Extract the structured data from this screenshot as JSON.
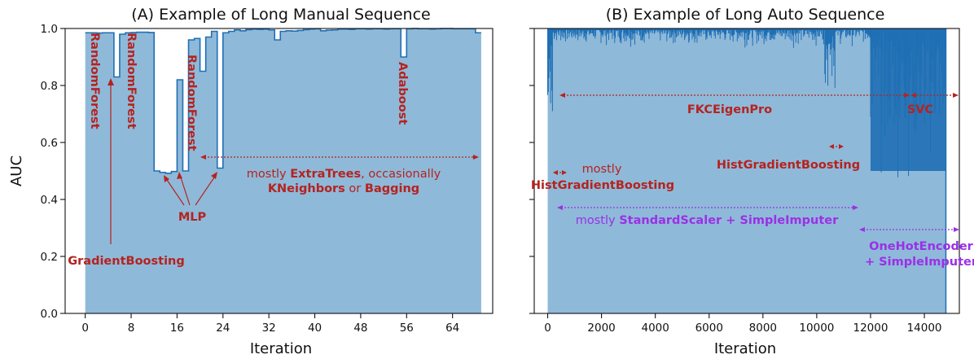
{
  "chart_data": [
    {
      "type": "area",
      "title": "(A) Example of Long Manual Sequence",
      "xlabel": "Iteration",
      "ylabel": "AUC",
      "xlim": [
        -3.5,
        71
      ],
      "ylim": [
        0,
        1
      ],
      "xticks": [
        "0",
        "8",
        "16",
        "24",
        "32",
        "40",
        "48",
        "56",
        "64"
      ],
      "yticks": [
        "0.0",
        "0.2",
        "0.4",
        "0.6",
        "0.8",
        "1.0"
      ],
      "color": "#1f6fb4",
      "fill_color": "#8fb9d9",
      "series": [
        {
          "x": [
            0,
            1,
            2,
            3,
            4,
            5,
            6,
            7,
            8,
            9,
            10,
            11,
            12,
            13,
            14,
            15,
            16,
            17,
            18,
            19,
            20,
            21,
            22,
            23,
            24,
            25,
            26,
            27,
            28,
            29,
            30,
            31,
            32,
            33,
            34,
            35,
            36,
            37,
            38,
            39,
            40,
            41,
            42,
            43,
            44,
            45,
            46,
            47,
            48,
            49,
            50,
            51,
            52,
            53,
            54,
            55,
            56,
            57,
            58,
            59,
            60,
            61,
            62,
            63,
            64,
            65,
            66,
            67,
            68
          ],
          "y": [
            0.985,
            0.985,
            0.984,
            0.985,
            0.985,
            0.83,
            0.98,
            0.985,
            0.986,
            0.987,
            0.987,
            0.986,
            0.5,
            0.495,
            0.492,
            0.498,
            0.82,
            0.5,
            0.96,
            0.965,
            0.85,
            0.97,
            0.99,
            0.51,
            0.985,
            0.99,
            0.995,
            0.992,
            0.996,
            0.998,
            0.997,
            0.998,
            0.995,
            0.96,
            0.99,
            0.992,
            0.991,
            0.993,
            0.996,
            0.998,
            0.999,
            0.992,
            0.994,
            0.995,
            0.998,
            0.998,
            0.997,
            0.999,
            0.999,
            0.998,
            0.999,
            0.999,
            0.998,
            0.999,
            0.999,
            0.9,
            0.999,
            1.0,
            0.999,
            0.999,
            0.998,
            0.999,
            1.0,
            1.0,
            0.999,
            0.999,
            0.999,
            0.999,
            0.985
          ]
        }
      ],
      "annotations": {
        "gradient_boosting": "GradientBoosting",
        "random_forest_1": "RandomForest",
        "random_forest_2": "RandomForest",
        "random_forest_3": "RandomForest",
        "adaboost": "Adaboost",
        "mlp": "MLP",
        "extratrees_line1_pre": "mostly ",
        "extratrees_line1_bold": "ExtraTrees",
        "extratrees_line1_post": ", occasionally",
        "extratrees_line2_bold1": "KNeighbors",
        "extratrees_line2_mid": " or ",
        "extratrees_line2_bold2": "Bagging"
      }
    },
    {
      "type": "area",
      "title": "(B) Example of Long Auto Sequence",
      "xlabel": "Iteration",
      "ylabel": "",
      "xlim": [
        -500,
        15300
      ],
      "ylim": [
        0,
        1
      ],
      "xticks": [
        "0",
        "2000",
        "4000",
        "6000",
        "8000",
        "10000",
        "12000",
        "14000"
      ],
      "color": "#1f6fb4",
      "fill_color": "#8fb9d9",
      "regions": [
        {
          "label": "FKCEigenPro",
          "x": [
            200,
            12000
          ],
          "y_range": [
            0.93,
            1.0
          ]
        },
        {
          "label": "HistGradientBoosting",
          "x": [
            0,
            200
          ],
          "y_range": [
            0.52,
            1.0
          ]
        },
        {
          "label": "HistGradientBoosting",
          "x": [
            10300,
            10700
          ],
          "y_range": [
            0.66,
            1.0
          ]
        },
        {
          "label": "SVC",
          "x": [
            12000,
            14800
          ],
          "y_range": [
            0.4,
            1.0
          ]
        }
      ],
      "annotations": {
        "fkc": "FKCEigenPro",
        "svc": "SVC",
        "hgb_mid": "HistGradientBoosting",
        "mostly_left": "mostly",
        "hgb_left": "HistGradientBoosting",
        "purple_mostly": "mostly ",
        "purple_bold": "StandardScaler + SimpleImputer",
        "purple_ohe1": "OneHotEncoder",
        "purple_ohe2": "+ SimpleImputer"
      }
    }
  ]
}
